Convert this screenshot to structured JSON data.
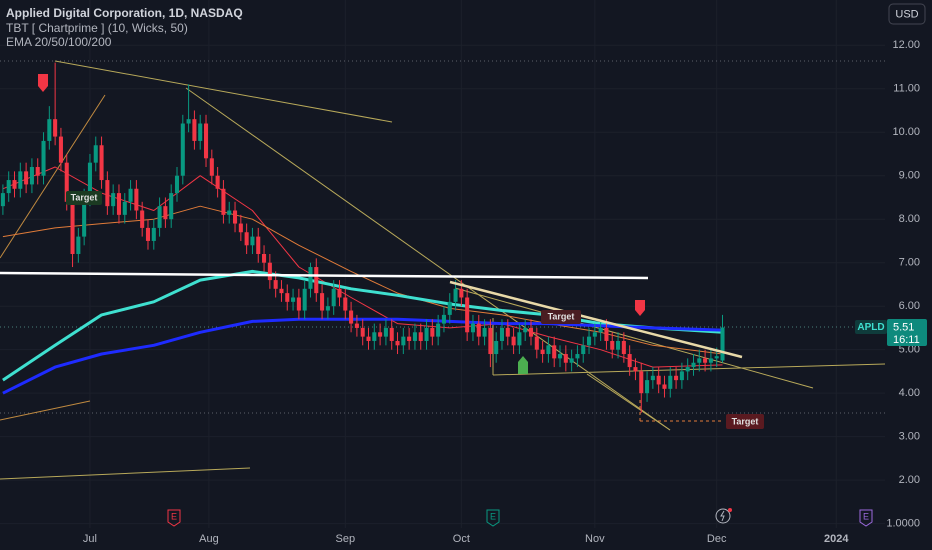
{
  "chart_data": {
    "type": "candlestick",
    "title": "Applied Digital Corporation, 1D, NASDAQ",
    "indicators": [
      "TBT [ Chartprime ] (10, Wicks,  50)",
      "EMA 20/50/100/200"
    ],
    "currency": "USD",
    "symbol": "APLD",
    "countdown": "16:11",
    "annotations": [
      "Target",
      "Target",
      "Target"
    ],
    "events": [
      "E",
      "E",
      "E"
    ],
    "up_color": "#089981",
    "down_color": "#f23645",
    "open": [
      8.3,
      8.6,
      8.9,
      8.7,
      9.1,
      8.8,
      9.2,
      9.0,
      9.8,
      10.3,
      9.9,
      9.3,
      8.4,
      7.2,
      7.6,
      8.5,
      9.3,
      9.7,
      8.9,
      8.3,
      8.6,
      8.1,
      8.4,
      8.7,
      8.2,
      7.8,
      7.5,
      7.8,
      8.3,
      8.0,
      8.6,
      9.0,
      10.2,
      10.3,
      9.8,
      10.2,
      9.4,
      9.0,
      8.7,
      8.1,
      8.2,
      7.9,
      7.7,
      7.4,
      7.6,
      7.2,
      7.0,
      6.6,
      6.4,
      6.3,
      6.1,
      6.2,
      5.9,
      6.4,
      6.9,
      6.3,
      5.9,
      6.0,
      6.4,
      6.2,
      5.9,
      5.6,
      5.5,
      5.3,
      5.2,
      5.4,
      5.3,
      5.5,
      5.2,
      5.1,
      5.3,
      5.2,
      5.4,
      5.2,
      5.5,
      5.3,
      5.6,
      5.8,
      6.1,
      6.4,
      6.2,
      5.4,
      5.6,
      5.3,
      5.5,
      4.9,
      5.2,
      5.5,
      5.3,
      5.1,
      5.4,
      5.5,
      5.3,
      5.0,
      4.9,
      5.1,
      4.8,
      4.9,
      4.7,
      4.8,
      4.9,
      5.1,
      5.3,
      5.4,
      5.5,
      5.2,
      5.0,
      5.2,
      4.9,
      4.6,
      4.5,
      4.0,
      4.3,
      4.4,
      4.2,
      4.1,
      4.4,
      4.3,
      4.5,
      4.6,
      4.7,
      4.8,
      4.7,
      4.8,
      4.75
    ],
    "high": [
      8.8,
      9.1,
      9.1,
      9.3,
      9.3,
      9.4,
      9.4,
      10.0,
      10.6,
      11.6,
      10.1,
      9.5,
      8.6,
      7.8,
      8.7,
      9.5,
      9.9,
      9.9,
      9.1,
      8.8,
      8.8,
      8.6,
      8.9,
      8.9,
      8.4,
      8.0,
      8.0,
      8.5,
      8.5,
      8.8,
      9.2,
      10.4,
      11.1,
      10.5,
      10.4,
      10.4,
      9.6,
      9.2,
      8.9,
      8.4,
      8.4,
      8.1,
      7.9,
      7.8,
      7.8,
      7.4,
      7.2,
      6.8,
      6.6,
      6.5,
      6.4,
      6.4,
      6.6,
      7.0,
      7.1,
      6.5,
      6.2,
      6.6,
      6.6,
      6.4,
      6.1,
      5.8,
      5.7,
      5.5,
      5.6,
      5.6,
      5.7,
      5.7,
      5.4,
      5.5,
      5.5,
      5.6,
      5.6,
      5.7,
      5.7,
      5.8,
      6.0,
      6.3,
      6.6,
      6.6,
      6.4,
      5.8,
      5.8,
      5.7,
      5.7,
      5.4,
      5.7,
      5.7,
      5.5,
      5.6,
      5.7,
      5.7,
      5.5,
      5.2,
      5.3,
      5.3,
      5.1,
      5.1,
      5.0,
      5.1,
      5.3,
      5.5,
      5.6,
      5.7,
      5.7,
      5.4,
      5.4,
      5.4,
      5.1,
      4.8,
      4.7,
      4.5,
      4.6,
      4.6,
      4.4,
      4.6,
      4.6,
      4.7,
      4.8,
      4.9,
      5.0,
      5.0,
      5.0,
      5.05,
      5.8
    ],
    "low": [
      8.1,
      8.4,
      8.5,
      8.5,
      8.6,
      8.6,
      8.8,
      8.8,
      9.6,
      9.7,
      9.1,
      8.2,
      6.9,
      7.0,
      7.4,
      8.3,
      9.1,
      8.7,
      8.1,
      8.1,
      7.9,
      7.9,
      8.2,
      8.0,
      7.6,
      7.3,
      7.3,
      7.6,
      7.8,
      7.8,
      8.4,
      8.8,
      10.0,
      9.6,
      9.6,
      9.2,
      8.8,
      8.5,
      7.9,
      7.9,
      7.7,
      7.5,
      7.2,
      7.2,
      7.0,
      6.8,
      6.4,
      6.2,
      6.1,
      5.9,
      5.9,
      5.7,
      5.7,
      6.2,
      6.1,
      5.7,
      5.7,
      5.8,
      6.0,
      5.7,
      5.4,
      5.3,
      5.1,
      5.0,
      5.0,
      5.1,
      5.1,
      5.0,
      4.9,
      4.9,
      5.0,
      5.0,
      5.0,
      5.0,
      5.1,
      5.1,
      5.4,
      5.6,
      5.9,
      6.0,
      5.2,
      5.2,
      5.1,
      5.1,
      4.6,
      4.7,
      5.0,
      5.1,
      4.9,
      4.9,
      5.2,
      5.1,
      4.8,
      4.7,
      4.7,
      4.6,
      4.6,
      4.5,
      4.5,
      4.6,
      4.7,
      4.9,
      5.1,
      5.2,
      5.0,
      4.8,
      4.8,
      4.7,
      4.4,
      4.3,
      3.55,
      3.8,
      4.1,
      4.0,
      3.9,
      3.9,
      4.1,
      4.1,
      4.3,
      4.4,
      4.5,
      4.5,
      4.5,
      4.6,
      4.7
    ],
    "close": [
      8.6,
      8.9,
      8.7,
      9.1,
      8.8,
      9.2,
      9.0,
      9.8,
      10.3,
      9.9,
      9.3,
      8.4,
      7.2,
      7.6,
      8.5,
      9.3,
      9.7,
      8.9,
      8.3,
      8.6,
      8.1,
      8.4,
      8.7,
      8.2,
      7.8,
      7.5,
      7.8,
      8.3,
      8.0,
      8.6,
      9.0,
      10.2,
      10.3,
      9.8,
      10.2,
      9.4,
      9.0,
      8.7,
      8.1,
      8.2,
      7.9,
      7.7,
      7.4,
      7.6,
      7.2,
      7.0,
      6.6,
      6.4,
      6.3,
      6.1,
      6.2,
      5.9,
      6.4,
      6.9,
      6.3,
      5.9,
      6.0,
      6.4,
      6.2,
      5.9,
      5.6,
      5.5,
      5.3,
      5.2,
      5.4,
      5.3,
      5.5,
      5.2,
      5.1,
      5.3,
      5.2,
      5.4,
      5.2,
      5.5,
      5.3,
      5.6,
      5.8,
      6.1,
      6.4,
      6.2,
      5.4,
      5.6,
      5.3,
      5.5,
      4.9,
      5.2,
      5.5,
      5.3,
      5.1,
      5.4,
      5.5,
      5.3,
      5.0,
      4.9,
      5.1,
      4.8,
      4.9,
      4.7,
      4.8,
      4.9,
      5.1,
      5.3,
      5.4,
      5.5,
      5.2,
      5.0,
      5.2,
      4.9,
      4.6,
      4.5,
      4.0,
      4.3,
      4.4,
      4.2,
      4.1,
      4.4,
      4.3,
      4.5,
      4.6,
      4.7,
      4.8,
      4.7,
      4.8,
      4.85,
      5.51
    ],
    "series": [
      {
        "color": "#f23645",
        "width": 1,
        "x": [
          0,
          9,
          17,
          26,
          34,
          43,
          51,
          60,
          68,
          77,
          86,
          94,
          103,
          112,
          124
        ],
        "values": [
          8.7,
          9.2,
          8.6,
          8.2,
          9.0,
          8.2,
          6.9,
          6.2,
          5.6,
          5.5,
          5.6,
          5.3,
          5.0,
          4.6,
          4.65
        ]
      },
      {
        "color": "#e07b39",
        "width": 1,
        "x": [
          0,
          9,
          17,
          26,
          34,
          43,
          51,
          60,
          68,
          77,
          86,
          94,
          103,
          112,
          124
        ],
        "values": [
          7.6,
          7.8,
          7.9,
          8.0,
          8.3,
          8.0,
          7.4,
          6.8,
          6.3,
          5.95,
          5.8,
          5.6,
          5.4,
          5.1,
          4.9
        ]
      },
      {
        "color": "#3fe0d0",
        "width": 3,
        "x": [
          0,
          9,
          17,
          26,
          34,
          43,
          51,
          60,
          68,
          77,
          86,
          94,
          103,
          112,
          124
        ],
        "values": [
          4.3,
          5.1,
          5.8,
          6.1,
          6.6,
          6.8,
          6.65,
          6.4,
          6.25,
          6.05,
          5.9,
          5.8,
          5.6,
          5.5,
          5.4
        ]
      },
      {
        "color": "#1e2bff",
        "width": 3,
        "x": [
          0,
          9,
          17,
          26,
          34,
          43,
          51,
          60,
          68,
          77,
          86,
          94,
          103,
          112,
          124
        ],
        "values": [
          4.0,
          4.6,
          4.9,
          5.1,
          5.4,
          5.65,
          5.7,
          5.7,
          5.7,
          5.65,
          5.6,
          5.6,
          5.55,
          5.5,
          5.45
        ]
      }
    ],
    "xlim": [
      -0.5,
      152
    ],
    "xticks": [
      {
        "value": 15,
        "label": "Jul"
      },
      {
        "value": 35.5,
        "label": "Aug"
      },
      {
        "value": 59,
        "label": "Sep"
      },
      {
        "value": 79,
        "label": "Oct"
      },
      {
        "value": 102,
        "label": "Nov"
      },
      {
        "value": 123,
        "label": "Dec"
      },
      {
        "value": 143.6,
        "label": "2024"
      }
    ],
    "ylim": [
      0.9,
      13.04
    ],
    "yticks": [
      {
        "value": 12,
        "label": "12.00"
      },
      {
        "value": 11,
        "label": "11.00"
      },
      {
        "value": 10,
        "label": "10.00"
      },
      {
        "value": 9,
        "label": "9.00"
      },
      {
        "value": 8,
        "label": "8.00"
      },
      {
        "value": 7,
        "label": "7.00"
      },
      {
        "value": 6,
        "label": "6.00"
      },
      {
        "value": 5,
        "label": "5.00"
      },
      {
        "value": 4,
        "label": "4.00"
      },
      {
        "value": 3,
        "label": "3.00"
      },
      {
        "value": 2,
        "label": "2.00"
      },
      {
        "value": 1,
        "label": "1.0000"
      }
    ],
    "grid": true
  }
}
